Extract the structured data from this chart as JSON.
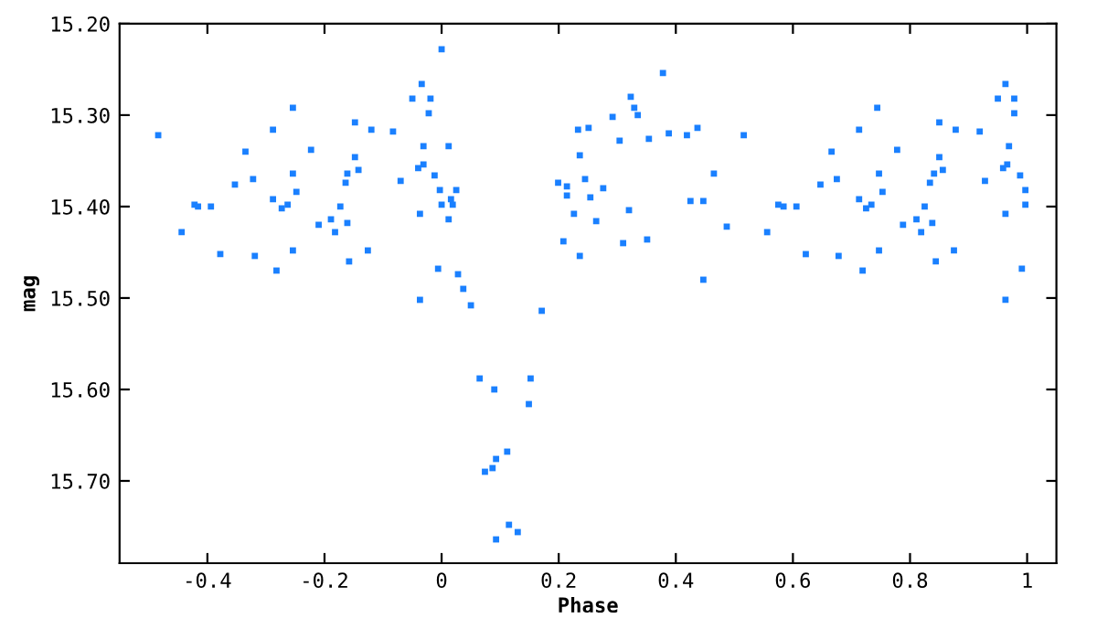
{
  "chart_data": {
    "type": "scatter",
    "xlabel": "Phase",
    "ylabel": "mag",
    "xlim": [
      -0.55,
      1.05
    ],
    "ylim": [
      15.79,
      15.2
    ],
    "xticks": [
      -0.4,
      -0.2,
      0,
      0.2,
      0.4,
      0.6,
      0.8,
      1
    ],
    "yticks": [
      {
        "value": 15.2,
        "label": "15.20"
      },
      {
        "value": 15.3,
        "label": "15.30"
      },
      {
        "value": 15.4,
        "label": "15.40"
      },
      {
        "value": 15.5,
        "label": "15.50"
      },
      {
        "value": 15.6,
        "label": "15.60"
      },
      {
        "value": 15.7,
        "label": "15.70"
      }
    ],
    "grid": false,
    "marker": "square",
    "series": [
      {
        "color": "#1a80ff",
        "x": [
          -0.484,
          -0.444,
          -0.422,
          -0.416,
          -0.394,
          -0.378,
          -0.353,
          -0.335,
          -0.322,
          -0.319,
          -0.288,
          -0.288,
          -0.282,
          -0.273,
          -0.263,
          -0.254,
          -0.254,
          -0.248,
          -0.254,
          -0.223,
          -0.21,
          -0.189,
          -0.182,
          -0.173,
          -0.164,
          -0.161,
          -0.161,
          -0.158,
          -0.148,
          -0.148,
          -0.142,
          -0.126,
          -0.12,
          -0.083,
          -0.07,
          0.0,
          -0.034,
          -0.05,
          -0.019,
          -0.022,
          -0.031,
          0.012,
          -0.04,
          -0.031,
          -0.012,
          -0.003,
          0.025,
          0.016,
          0.0,
          0.019,
          -0.037,
          0.012,
          -0.006,
          0.028,
          0.037,
          0.05,
          -0.037,
          0.171,
          0.065,
          0.09,
          0.152,
          0.149,
          0.112,
          0.093,
          0.087,
          0.074,
          0.115,
          0.13,
          0.093,
          0.199,
          0.214,
          0.214,
          0.226,
          0.208,
          0.236,
          0.233,
          0.251,
          0.236,
          0.245,
          0.254,
          0.276,
          0.264,
          0.292,
          0.304,
          0.323,
          0.329,
          0.335,
          0.32,
          0.31,
          0.351,
          0.354,
          0.378,
          0.388,
          0.419,
          0.437,
          0.465,
          0.425,
          0.447,
          0.487,
          0.447,
          0.516,
          0.556,
          0.575,
          0.584,
          0.606,
          0.622,
          0.647,
          0.666,
          0.675,
          0.678,
          0.713,
          0.713,
          0.719,
          0.725,
          0.734,
          0.744,
          0.747,
          0.753,
          0.747,
          0.778,
          0.788,
          0.811,
          0.819,
          0.825,
          0.834,
          0.841,
          0.838,
          0.844,
          0.85,
          0.85,
          0.856,
          0.875,
          0.878,
          0.919,
          0.928,
          0.95,
          0.963,
          0.978,
          0.978,
          0.969,
          0.959,
          0.966,
          0.988,
          0.997,
          0.997,
          0.963,
          0.991,
          0.963
        ],
        "values": [
          15.322,
          15.428,
          15.398,
          15.4,
          15.4,
          15.452,
          15.376,
          15.34,
          15.37,
          15.454,
          15.316,
          15.392,
          15.47,
          15.402,
          15.398,
          15.292,
          15.364,
          15.384,
          15.448,
          15.338,
          15.42,
          15.414,
          15.428,
          15.4,
          15.374,
          15.364,
          15.418,
          15.46,
          15.308,
          15.346,
          15.36,
          15.448,
          15.316,
          15.318,
          15.372,
          15.228,
          15.266,
          15.282,
          15.282,
          15.298,
          15.334,
          15.334,
          15.358,
          15.354,
          15.366,
          15.382,
          15.382,
          15.392,
          15.398,
          15.398,
          15.408,
          15.414,
          15.468,
          15.474,
          15.49,
          15.508,
          15.502,
          15.514,
          15.588,
          15.6,
          15.588,
          15.616,
          15.668,
          15.676,
          15.686,
          15.69,
          15.748,
          15.756,
          15.764,
          15.374,
          15.378,
          15.388,
          15.408,
          15.438,
          15.454,
          15.316,
          15.314,
          15.344,
          15.37,
          15.39,
          15.38,
          15.416,
          15.302,
          15.328,
          15.28,
          15.292,
          15.3,
          15.404,
          15.44,
          15.436,
          15.326,
          15.254,
          15.32,
          15.322,
          15.314,
          15.364,
          15.394,
          15.394,
          15.422,
          15.48,
          15.322,
          15.428,
          15.398,
          15.4,
          15.4,
          15.452,
          15.376,
          15.34,
          15.37,
          15.454,
          15.316,
          15.392,
          15.47,
          15.402,
          15.398,
          15.292,
          15.364,
          15.384,
          15.448,
          15.338,
          15.42,
          15.414,
          15.428,
          15.4,
          15.374,
          15.364,
          15.418,
          15.46,
          15.308,
          15.346,
          15.36,
          15.448,
          15.316,
          15.318,
          15.372,
          15.282,
          15.266,
          15.282,
          15.298,
          15.334,
          15.358,
          15.354,
          15.366,
          15.382,
          15.398,
          15.408,
          15.468,
          15.502
        ]
      }
    ]
  }
}
